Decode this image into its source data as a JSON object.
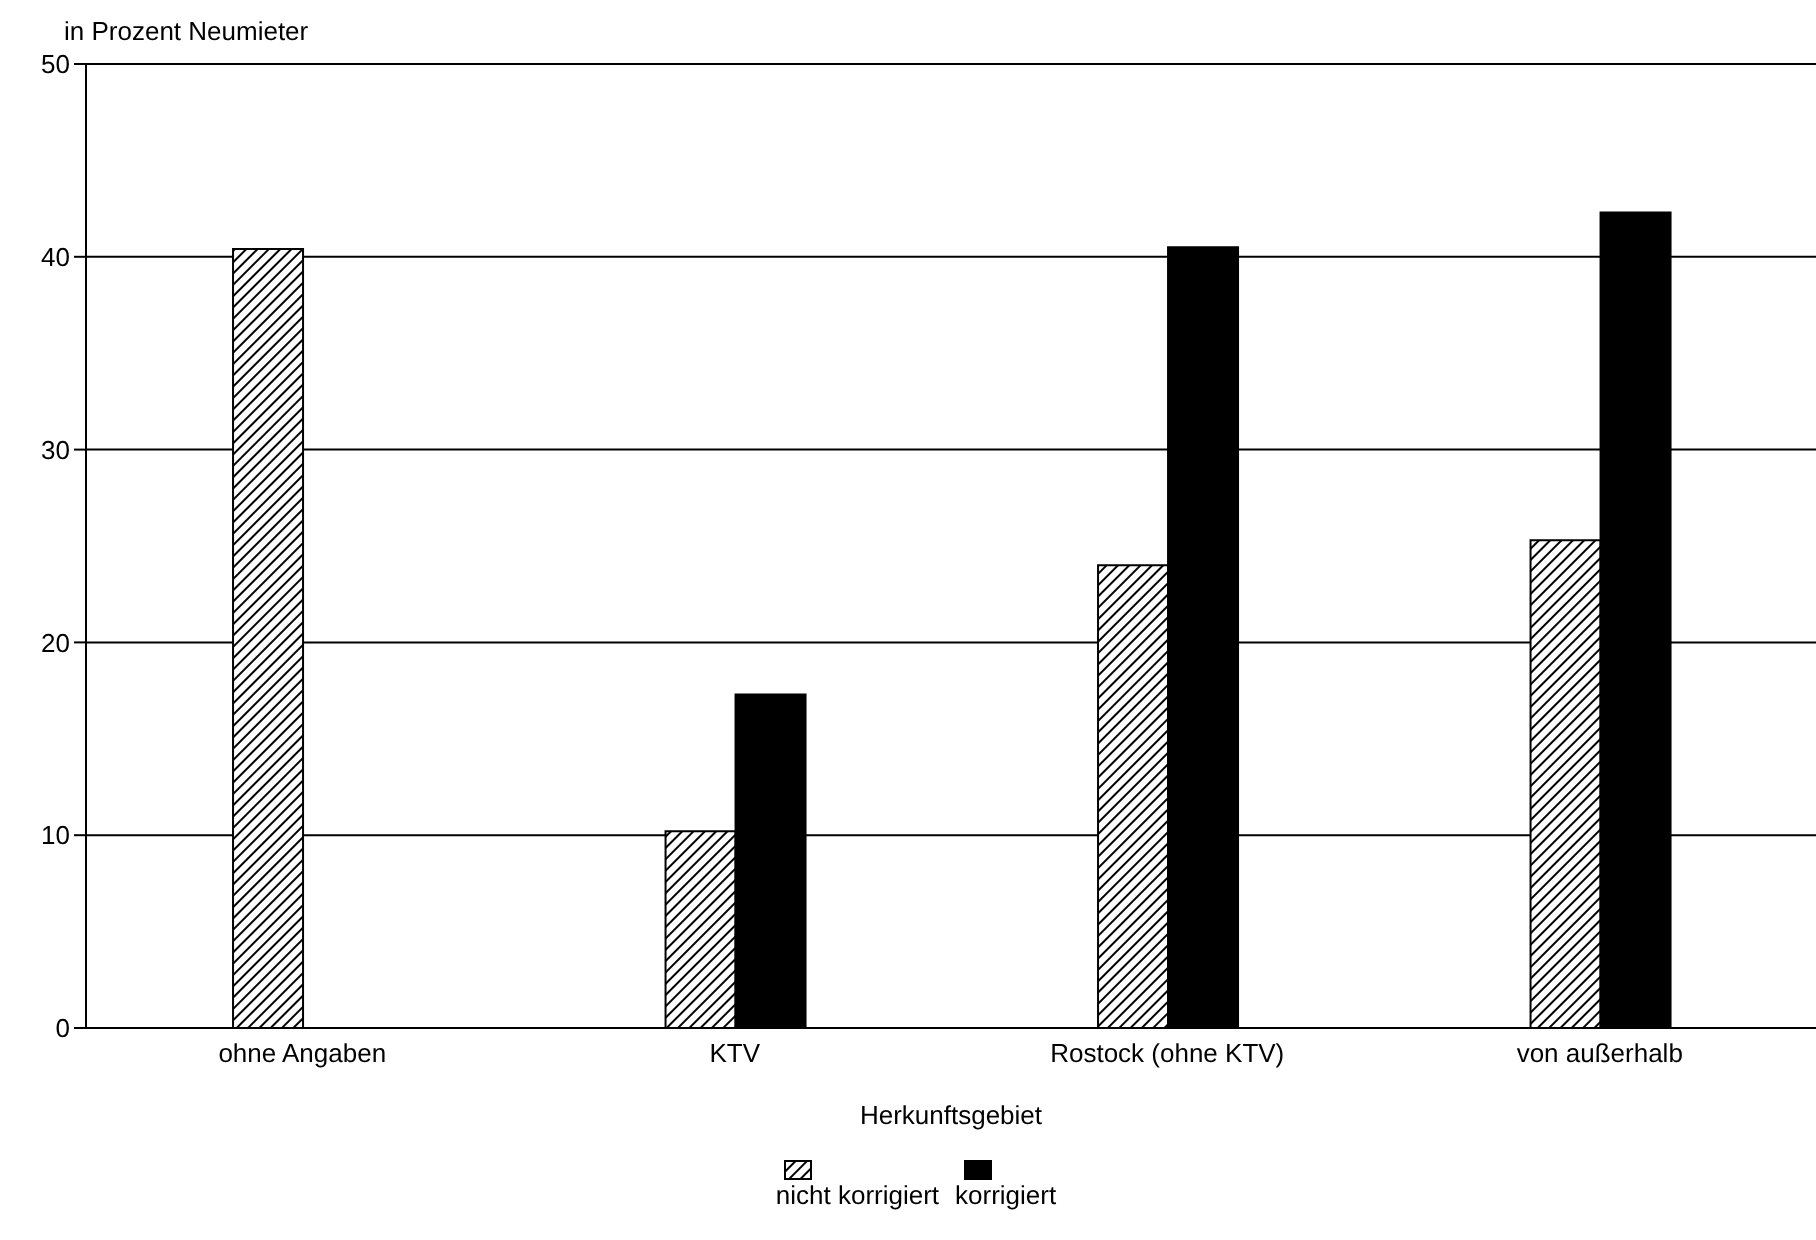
{
  "chart_data": {
    "type": "bar",
    "ylabel": "in Prozent Neumieter",
    "xlabel": "Herkunftsgebiet",
    "categories": [
      "ohne Angaben",
      "KTV",
      "Rostock (ohne KTV)",
      "von außerhalb"
    ],
    "series": [
      {
        "name": "nicht korrigiert",
        "color": "#000000",
        "values": [
          40.4,
          10.2,
          24.0,
          25.3
        ]
      },
      {
        "name": "korrigiert",
        "color": "#000000",
        "values": [
          null,
          17.3,
          40.5,
          42.3
        ]
      }
    ],
    "ylim": [
      0,
      50
    ],
    "yticks": [
      0,
      10,
      20,
      30,
      40,
      50
    ],
    "grid": "y",
    "legend": "bottom"
  }
}
